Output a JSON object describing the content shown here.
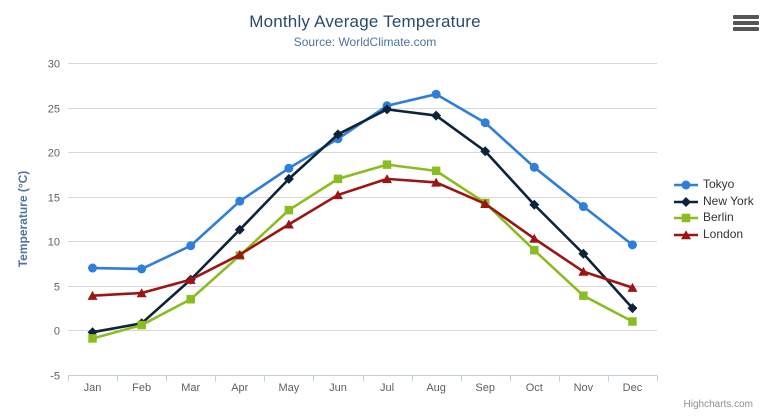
{
  "header": {
    "title": "Monthly Average Temperature",
    "subtitle": "Source: WorldClimate.com"
  },
  "credits_label": "Highcharts.com",
  "menu_icon": "hamburger-menu-icon",
  "colors": {
    "title": "#274b6d",
    "subtitle": "#4d759e",
    "axis_title": "#4d759e",
    "tick_label": "#606060",
    "grid": "#d8d8d8",
    "axis_line": "#c0d0e0",
    "legend_text": "#333333",
    "credits": "#909090",
    "menu_bars": "#555555"
  },
  "chart_data": {
    "type": "line",
    "title": "Monthly Average Temperature",
    "subtitle": "Source: WorldClimate.com",
    "xlabel": "",
    "ylabel": "Temperature (°C)",
    "categories": [
      "Jan",
      "Feb",
      "Mar",
      "Apr",
      "May",
      "Jun",
      "Jul",
      "Aug",
      "Sep",
      "Oct",
      "Nov",
      "Dec"
    ],
    "ylim": [
      -5,
      30
    ],
    "yticks": [
      -5,
      0,
      5,
      10,
      15,
      20,
      25,
      30
    ],
    "grid": true,
    "legend_position": "right",
    "series": [
      {
        "name": "Tokyo",
        "color": "#2f7ed8",
        "marker": "circle",
        "values": [
          7.0,
          6.9,
          9.5,
          14.5,
          18.2,
          21.5,
          25.2,
          26.5,
          23.3,
          18.3,
          13.9,
          9.6
        ]
      },
      {
        "name": "New York",
        "color": "#0d233a",
        "marker": "diamond",
        "values": [
          -0.2,
          0.8,
          5.7,
          11.3,
          17.0,
          22.0,
          24.8,
          24.1,
          20.1,
          14.1,
          8.6,
          2.5
        ]
      },
      {
        "name": "Berlin",
        "color": "#8bbc21",
        "marker": "square",
        "values": [
          -0.9,
          0.6,
          3.5,
          8.4,
          13.5,
          17.0,
          18.6,
          17.9,
          14.3,
          9.0,
          3.9,
          1.0
        ]
      },
      {
        "name": "London",
        "color": "#9c1515",
        "marker": "triangle",
        "values": [
          3.9,
          4.2,
          5.7,
          8.5,
          11.9,
          15.2,
          17.0,
          16.6,
          14.2,
          10.3,
          6.6,
          4.8
        ]
      }
    ]
  }
}
